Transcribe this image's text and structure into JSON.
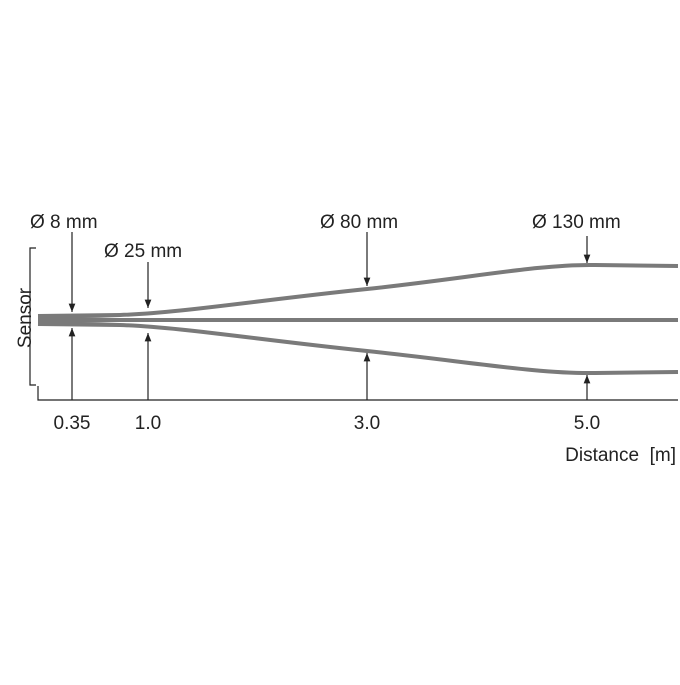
{
  "sensor": "Sensor",
  "axis_label": "Distance  [m]",
  "points": [
    {
      "diameter": "Ø 8 mm",
      "distance": "0.35"
    },
    {
      "diameter": "Ø 25 mm",
      "distance": "1.0"
    },
    {
      "diameter": "Ø 80 mm",
      "distance": "3.0"
    },
    {
      "diameter": "Ø 130 mm",
      "distance": "5.0"
    }
  ]
}
